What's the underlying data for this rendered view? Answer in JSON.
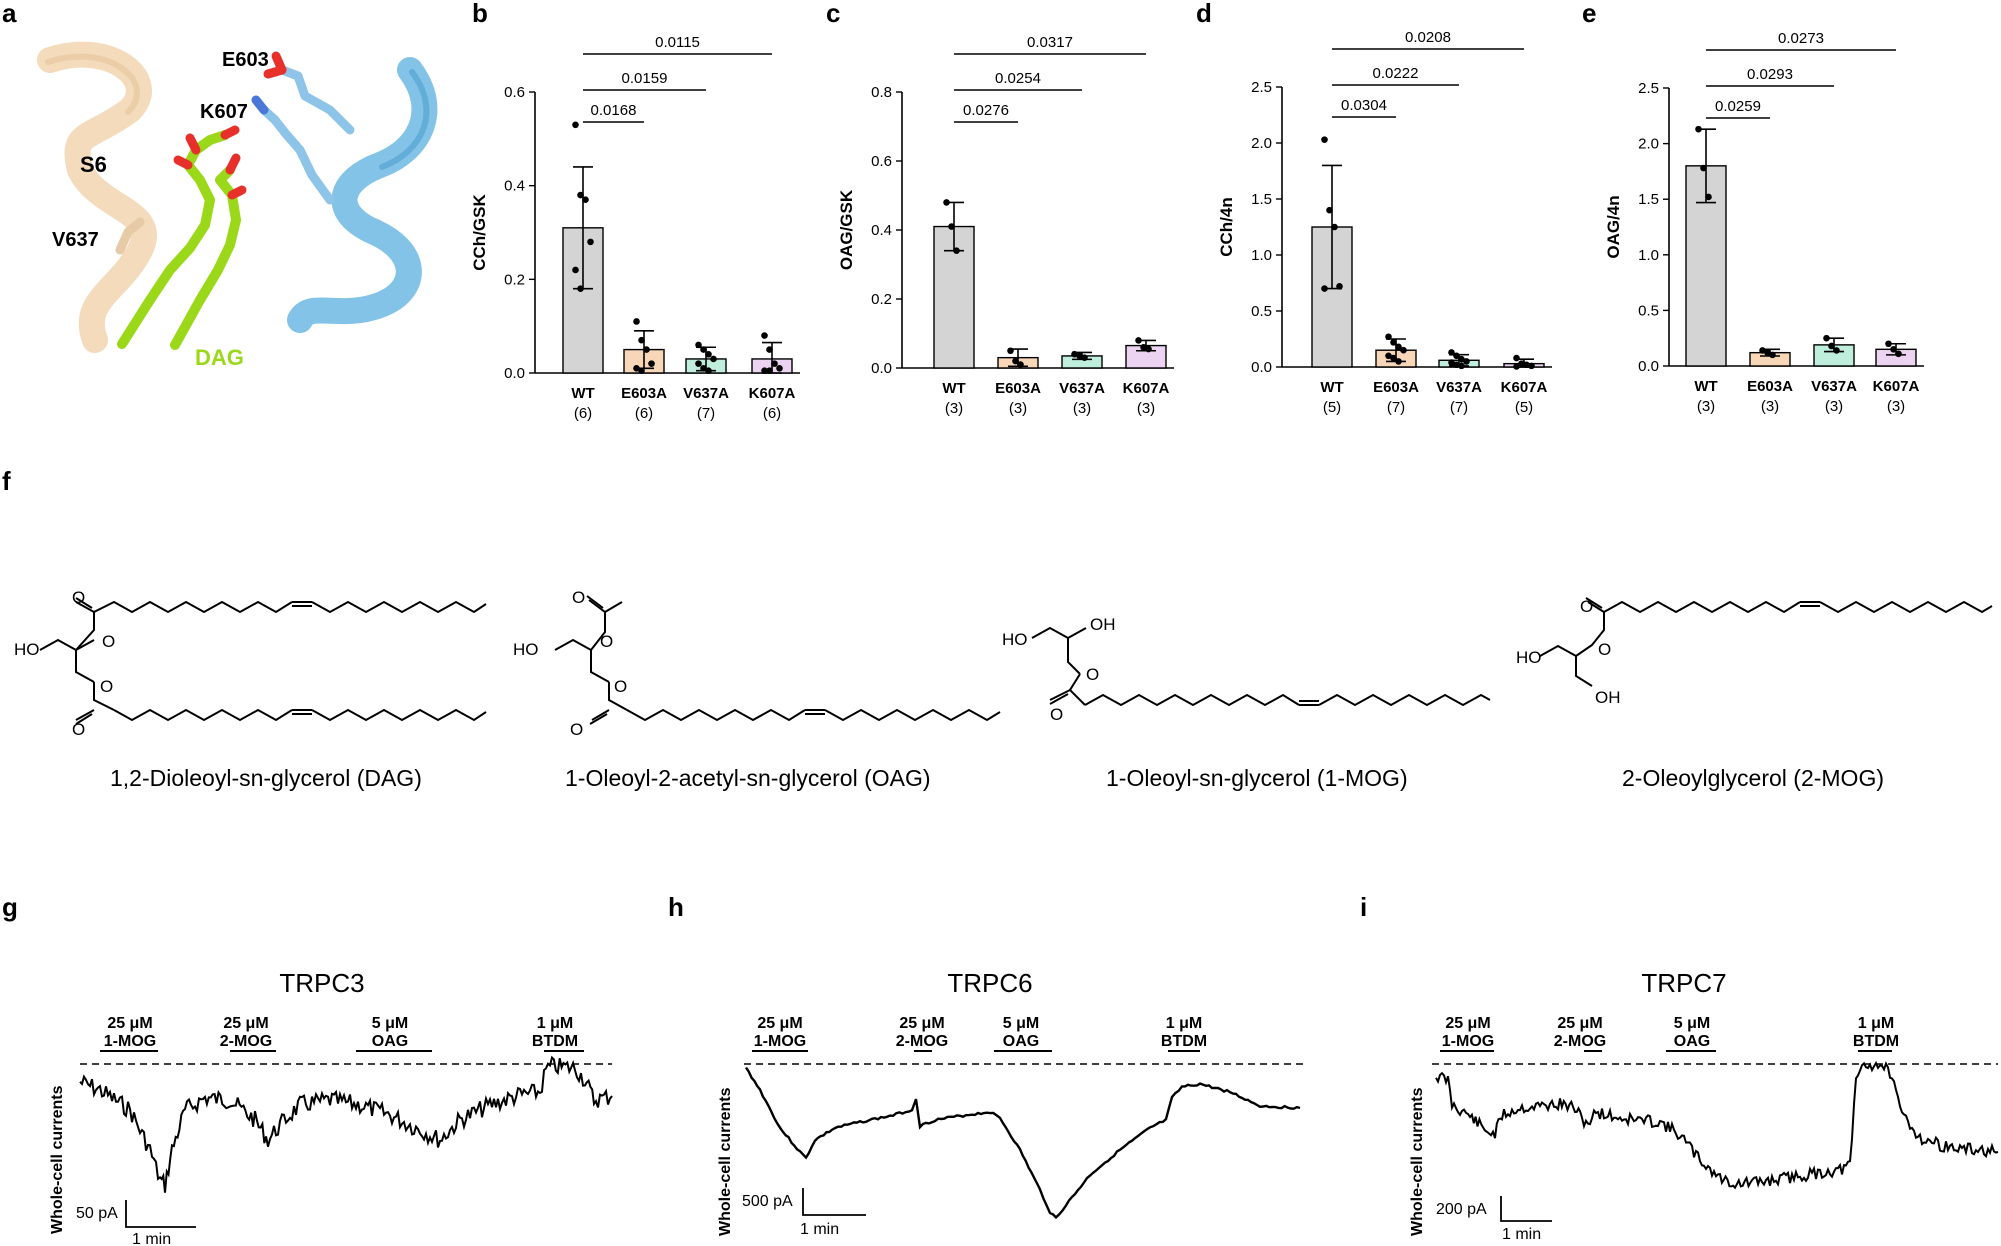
{
  "panel_labels": {
    "a": "a",
    "b": "b",
    "c": "c",
    "d": "d",
    "e": "e",
    "f": "f",
    "g": "g",
    "h": "h",
    "i": "i"
  },
  "panel_a": {
    "labels": {
      "e603": "E603",
      "k607": "K607",
      "s6": "S6",
      "v637": "V637",
      "dag": "DAG"
    },
    "colors": {
      "helix_left": "#f2d9b8",
      "helix_right": "#7cc0e6",
      "ligand": "#9bd81a",
      "oxygen": "#e8302a",
      "nitrogen": "#4a78d8"
    }
  },
  "chart_data": [
    {
      "panel": "b",
      "type": "bar",
      "ylabel": "CCh/GSK",
      "ylim": [
        0,
        0.6
      ],
      "yticks": [
        "0.0",
        "0.2",
        "0.4",
        "0.6"
      ],
      "ytick_values": [
        0,
        0.2,
        0.4,
        0.6
      ],
      "categories": [
        "WT",
        "E603A",
        "V637A",
        "K607A"
      ],
      "n_labels": [
        "(6)",
        "(6)",
        "(7)",
        "(6)"
      ],
      "values": [
        0.31,
        0.05,
        0.03,
        0.03
      ],
      "errors": [
        0.13,
        0.04,
        0.025,
        0.035
      ],
      "points": [
        [
          0.53,
          0.38,
          0.37,
          0.28,
          0.22,
          0.18
        ],
        [
          0.11,
          0.07,
          0.05,
          0.02,
          0.01,
          0.005
        ],
        [
          0.06,
          0.05,
          0.04,
          0.03,
          0.02,
          0.01,
          0.005
        ],
        [
          0.08,
          0.05,
          0.02,
          0.01,
          0.005,
          0.005
        ]
      ],
      "colors": [
        "#d4d4d4",
        "#f8d7b8",
        "#bfeedd",
        "#ecd3f2"
      ],
      "comparisons": [
        {
          "label": "0.0168",
          "from": 0,
          "to": 1
        },
        {
          "label": "0.0159",
          "from": 0,
          "to": 2
        },
        {
          "label": "0.0115",
          "from": 0,
          "to": 3
        }
      ]
    },
    {
      "panel": "c",
      "type": "bar",
      "ylabel": "OAG/GSK",
      "ylim": [
        0,
        0.8
      ],
      "yticks": [
        "0.0",
        "0.2",
        "0.4",
        "0.6",
        "0.8"
      ],
      "ytick_values": [
        0,
        0.2,
        0.4,
        0.6,
        0.8
      ],
      "categories": [
        "WT",
        "E603A",
        "V637A",
        "K607A"
      ],
      "n_labels": [
        "(3)",
        "(3)",
        "(3)",
        "(3)"
      ],
      "values": [
        0.41,
        0.03,
        0.035,
        0.065
      ],
      "errors": [
        0.07,
        0.025,
        0.01,
        0.015
      ],
      "points": [
        [
          0.48,
          0.41,
          0.34
        ],
        [
          0.05,
          0.02,
          0.01
        ],
        [
          0.04,
          0.035,
          0.03
        ],
        [
          0.08,
          0.06,
          0.055
        ]
      ],
      "colors": [
        "#d4d4d4",
        "#f8d7b8",
        "#bfeedd",
        "#ecd3f2"
      ],
      "comparisons": [
        {
          "label": "0.0276",
          "from": 0,
          "to": 1
        },
        {
          "label": "0.0254",
          "from": 0,
          "to": 2
        },
        {
          "label": "0.0317",
          "from": 0,
          "to": 3
        }
      ]
    },
    {
      "panel": "d",
      "type": "bar",
      "ylabel": "CCh/4n",
      "ylim": [
        0,
        2.5
      ],
      "yticks": [
        "0.0",
        "0.5",
        "1.0",
        "1.5",
        "2.0",
        "2.5"
      ],
      "ytick_values": [
        0,
        0.5,
        1,
        1.5,
        2,
        2.5
      ],
      "categories": [
        "WT",
        "E603A",
        "V637A",
        "K607A"
      ],
      "n_labels": [
        "(5)",
        "(7)",
        "(7)",
        "(5)"
      ],
      "values": [
        1.25,
        0.15,
        0.06,
        0.03
      ],
      "errors": [
        0.55,
        0.1,
        0.05,
        0.04
      ],
      "points": [
        [
          2.03,
          1.4,
          1.25,
          0.72,
          0.7
        ],
        [
          0.27,
          0.22,
          0.18,
          0.15,
          0.1,
          0.08,
          0.05
        ],
        [
          0.13,
          0.1,
          0.07,
          0.05,
          0.04,
          0.02,
          0.01
        ],
        [
          0.08,
          0.03,
          0.02,
          0.01,
          0.005
        ]
      ],
      "colors": [
        "#d4d4d4",
        "#f8d7b8",
        "#bfeedd",
        "#ecd3f2"
      ],
      "comparisons": [
        {
          "label": "0.0304",
          "from": 0,
          "to": 1
        },
        {
          "label": "0.0222",
          "from": 0,
          "to": 2
        },
        {
          "label": "0.0208",
          "from": 0,
          "to": 3
        }
      ]
    },
    {
      "panel": "e",
      "type": "bar",
      "ylabel": "OAG/4n",
      "ylim": [
        0,
        2.5
      ],
      "yticks": [
        "0.0",
        "0.5",
        "1.0",
        "1.5",
        "2.0",
        "2.5"
      ],
      "ytick_values": [
        0,
        0.5,
        1,
        1.5,
        2,
        2.5
      ],
      "categories": [
        "WT",
        "E603A",
        "V637A",
        "K607A"
      ],
      "n_labels": [
        "(3)",
        "(3)",
        "(3)",
        "(3)"
      ],
      "values": [
        1.8,
        0.12,
        0.19,
        0.15
      ],
      "errors": [
        0.33,
        0.03,
        0.06,
        0.05
      ],
      "points": [
        [
          2.13,
          1.78,
          1.52
        ],
        [
          0.14,
          0.12,
          0.1
        ],
        [
          0.25,
          0.18,
          0.14
        ],
        [
          0.2,
          0.15,
          0.11
        ]
      ],
      "colors": [
        "#d4d4d4",
        "#f8d7b8",
        "#bfeedd",
        "#ecd3f2"
      ],
      "comparisons": [
        {
          "label": "0.0259",
          "from": 0,
          "to": 1
        },
        {
          "label": "0.0293",
          "from": 0,
          "to": 2
        },
        {
          "label": "0.0273",
          "from": 0,
          "to": 3
        }
      ]
    }
  ],
  "panel_f": {
    "structures": [
      {
        "name": "1,2-Dioleoyl-sn-glycerol (DAG)",
        "labels": [
          "O",
          "O",
          "HO",
          "O",
          "O"
        ]
      },
      {
        "name": "1-Oleoyl-2-acetyl-sn-glycerol (OAG)",
        "labels": [
          "O",
          "O",
          "HO",
          "O",
          "O"
        ]
      },
      {
        "name": "1-Oleoyl-sn-glycerol (1-MOG)",
        "labels": [
          "HO",
          "OH",
          "O",
          "O"
        ]
      },
      {
        "name": "2-Oleoylglycerol (2-MOG)",
        "labels": [
          "O",
          "HO",
          "O",
          "OH"
        ]
      }
    ]
  },
  "traces": [
    {
      "panel": "g",
      "title": "TRPC3",
      "ylabel": "Whole-cell currents",
      "scale_y": "50 pA",
      "scale_x": "1 min",
      "bars": [
        {
          "conc": "25 μM",
          "drug": "1-MOG"
        },
        {
          "conc": "25 μM",
          "drug": "2-MOG"
        },
        {
          "conc": "5 μM",
          "drug": "OAG"
        },
        {
          "conc": "1 μM",
          "drug": "BTDM"
        }
      ]
    },
    {
      "panel": "h",
      "title": "TRPC6",
      "ylabel": "Whole-cell currents",
      "scale_y": "500 pA",
      "scale_x": "1 min",
      "bars": [
        {
          "conc": "25 μM",
          "drug": "1-MOG"
        },
        {
          "conc": "25 μM",
          "drug": "2-MOG"
        },
        {
          "conc": "5 μM",
          "drug": "OAG"
        },
        {
          "conc": "1 μM",
          "drug": "BTDM"
        }
      ]
    },
    {
      "panel": "i",
      "title": "TRPC7",
      "ylabel": "Whole-cell currents",
      "scale_y": "200 pA",
      "scale_x": "1 min",
      "bars": [
        {
          "conc": "25 μM",
          "drug": "1-MOG"
        },
        {
          "conc": "25 μM",
          "drug": "2-MOG"
        },
        {
          "conc": "5 μM",
          "drug": "OAG"
        },
        {
          "conc": "1 μM",
          "drug": "BTDM"
        }
      ]
    }
  ]
}
